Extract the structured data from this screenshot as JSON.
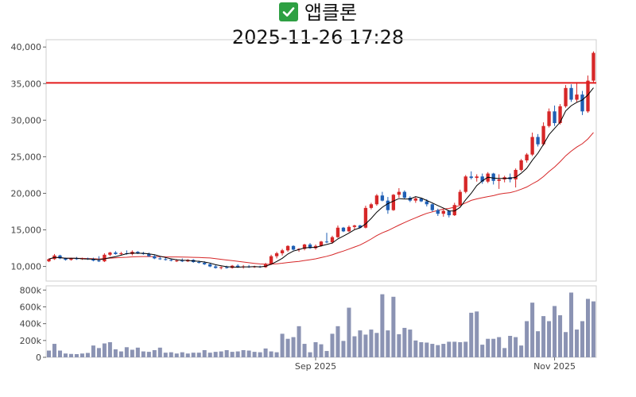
{
  "title": {
    "icon": "check-mark-icon",
    "name": "앱클론",
    "datetime": "2025-11-26 17:28"
  },
  "colors": {
    "up": "#d62728",
    "down": "#1f5fb4",
    "ma_short": "#000000",
    "ma_long": "#d62728",
    "hline": "#e31a1c",
    "volume": "#8b93b3"
  },
  "chart_data": {
    "type": "candlestick",
    "price_axis": {
      "ylim": [
        8000,
        41000
      ],
      "ticks": [
        "10,000",
        "15,000",
        "20,000",
        "25,000",
        "30,000",
        "35,000",
        "40,000"
      ],
      "tick_values": [
        10000,
        15000,
        20000,
        25000,
        30000,
        35000,
        40000
      ]
    },
    "volume_axis": {
      "ylim": [
        0,
        850000
      ],
      "ticks": [
        "0",
        "200k",
        "400k",
        "600k",
        "800k"
      ],
      "tick_values": [
        0,
        200000,
        400000,
        600000,
        800000
      ]
    },
    "x_tick_labels": [
      {
        "label": "Sep 2025",
        "index": 48
      },
      {
        "label": "Nov 2025",
        "index": 91
      }
    ],
    "horizontal_line": 35100,
    "candles": [
      [
        10700,
        11100,
        10600,
        11000
      ],
      [
        11000,
        11700,
        10900,
        11500
      ],
      [
        11500,
        11600,
        11000,
        11100
      ],
      [
        11100,
        11200,
        10800,
        10900
      ],
      [
        10900,
        11200,
        10800,
        11100
      ],
      [
        11100,
        11300,
        10900,
        11000
      ],
      [
        11000,
        11200,
        10900,
        11100
      ],
      [
        11100,
        11200,
        10900,
        11000
      ],
      [
        11000,
        11200,
        10700,
        10800
      ],
      [
        10800,
        11400,
        10600,
        10700
      ],
      [
        10700,
        11800,
        10600,
        11600
      ],
      [
        11600,
        12000,
        11400,
        11900
      ],
      [
        11900,
        12100,
        11600,
        11700
      ],
      [
        11700,
        12000,
        11500,
        11800
      ],
      [
        11800,
        12200,
        11600,
        11700
      ],
      [
        11700,
        12200,
        11500,
        12000
      ],
      [
        12000,
        12100,
        11700,
        11800
      ],
      [
        11800,
        12000,
        11600,
        11700
      ],
      [
        11700,
        11900,
        11300,
        11400
      ],
      [
        11400,
        11600,
        11000,
        11100
      ],
      [
        11100,
        11300,
        10900,
        11000
      ],
      [
        11000,
        11200,
        10800,
        10900
      ],
      [
        10900,
        11100,
        10700,
        10800
      ],
      [
        10800,
        11000,
        10600,
        10800
      ],
      [
        10800,
        11100,
        10600,
        10700
      ],
      [
        10700,
        11000,
        10600,
        10900
      ],
      [
        10900,
        11000,
        10500,
        10600
      ],
      [
        10600,
        10800,
        10400,
        10500
      ],
      [
        10500,
        10700,
        10200,
        10300
      ],
      [
        10300,
        10500,
        9900,
        10000
      ],
      [
        10000,
        10200,
        9700,
        9800
      ],
      [
        9800,
        10000,
        9600,
        9900
      ],
      [
        9900,
        10100,
        9700,
        9800
      ],
      [
        9800,
        10200,
        9700,
        10100
      ],
      [
        10100,
        10300,
        9800,
        9900
      ],
      [
        9900,
        10200,
        9700,
        10000
      ],
      [
        10000,
        10200,
        9800,
        9900
      ],
      [
        9900,
        10100,
        9800,
        10000
      ],
      [
        10000,
        10100,
        9800,
        9900
      ],
      [
        9900,
        10500,
        9800,
        10300
      ],
      [
        10300,
        11600,
        10200,
        11400
      ],
      [
        11400,
        12000,
        11100,
        11800
      ],
      [
        11800,
        12400,
        11500,
        12200
      ],
      [
        12200,
        12900,
        12000,
        12800
      ],
      [
        12800,
        12900,
        12200,
        12300
      ],
      [
        12300,
        12500,
        12000,
        12400
      ],
      [
        12400,
        13100,
        12200,
        13000
      ],
      [
        13000,
        13200,
        12400,
        12500
      ],
      [
        12500,
        13000,
        12300,
        12800
      ],
      [
        12800,
        13500,
        12700,
        13400
      ],
      [
        13400,
        14600,
        13200,
        13300
      ],
      [
        13300,
        14200,
        13100,
        14000
      ],
      [
        14000,
        15600,
        13900,
        15300
      ],
      [
        15300,
        15400,
        14700,
        14800
      ],
      [
        14800,
        15600,
        14700,
        15400
      ],
      [
        15400,
        15700,
        15000,
        15600
      ],
      [
        15600,
        15700,
        15200,
        15300
      ],
      [
        15300,
        18300,
        15200,
        18000
      ],
      [
        18000,
        18700,
        17800,
        18500
      ],
      [
        18500,
        19900,
        18300,
        19700
      ],
      [
        19700,
        20200,
        18900,
        19000
      ],
      [
        19000,
        19500,
        17200,
        17700
      ],
      [
        17700,
        19900,
        17600,
        19800
      ],
      [
        19800,
        20700,
        19400,
        20200
      ],
      [
        20200,
        20400,
        19200,
        19400
      ],
      [
        19400,
        19600,
        18800,
        19000
      ],
      [
        19000,
        19500,
        18700,
        19300
      ],
      [
        19300,
        19400,
        18800,
        18900
      ],
      [
        18900,
        19200,
        18200,
        18500
      ],
      [
        18500,
        18600,
        17500,
        17700
      ],
      [
        17700,
        17900,
        16900,
        17200
      ],
      [
        17200,
        17800,
        16800,
        17600
      ],
      [
        17600,
        17700,
        16700,
        17000
      ],
      [
        17000,
        18700,
        16900,
        18400
      ],
      [
        18400,
        20500,
        18300,
        20200
      ],
      [
        20200,
        22500,
        20000,
        22300
      ],
      [
        22300,
        23000,
        21900,
        22100
      ],
      [
        22100,
        22600,
        21600,
        22300
      ],
      [
        22300,
        22700,
        21300,
        21600
      ],
      [
        21600,
        22900,
        21400,
        22700
      ],
      [
        22700,
        22800,
        21200,
        21700
      ],
      [
        21700,
        22600,
        20600,
        21900
      ],
      [
        21900,
        22400,
        21500,
        22200
      ],
      [
        22200,
        22700,
        21500,
        21900
      ],
      [
        21900,
        23400,
        20800,
        23200
      ],
      [
        23200,
        24700,
        23000,
        24500
      ],
      [
        24500,
        25500,
        24200,
        25300
      ],
      [
        25300,
        28300,
        25100,
        27700
      ],
      [
        27700,
        28100,
        26400,
        26700
      ],
      [
        26700,
        29700,
        26500,
        29200
      ],
      [
        29200,
        31600,
        29000,
        31200
      ],
      [
        31200,
        32000,
        29200,
        29600
      ],
      [
        29600,
        32200,
        29400,
        31900
      ],
      [
        31900,
        34800,
        31700,
        34400
      ],
      [
        34400,
        34900,
        32500,
        32800
      ],
      [
        32800,
        35200,
        32500,
        33500
      ],
      [
        33500,
        34000,
        30700,
        31200
      ],
      [
        31200,
        36100,
        31000,
        35400
      ],
      [
        35400,
        39400,
        35200,
        39200
      ]
    ],
    "volumes": [
      80000,
      160000,
      80000,
      45000,
      40000,
      38000,
      45000,
      52000,
      140000,
      110000,
      165000,
      180000,
      95000,
      70000,
      120000,
      90000,
      115000,
      70000,
      65000,
      85000,
      115000,
      55000,
      60000,
      45000,
      60000,
      45000,
      55000,
      55000,
      85000,
      55000,
      65000,
      70000,
      85000,
      65000,
      70000,
      85000,
      80000,
      65000,
      60000,
      105000,
      70000,
      60000,
      280000,
      220000,
      240000,
      370000,
      160000,
      60000,
      180000,
      155000,
      75000,
      280000,
      370000,
      195000,
      590000,
      250000,
      320000,
      270000,
      330000,
      290000,
      750000,
      320000,
      720000,
      275000,
      350000,
      330000,
      200000,
      180000,
      175000,
      160000,
      145000,
      160000,
      185000,
      185000,
      180000,
      185000,
      530000,
      545000,
      150000,
      220000,
      220000,
      240000,
      110000,
      255000,
      240000,
      140000,
      430000,
      650000,
      310000,
      490000,
      430000,
      610000,
      500000,
      300000,
      770000,
      330000,
      430000,
      695000,
      665000
    ]
  }
}
